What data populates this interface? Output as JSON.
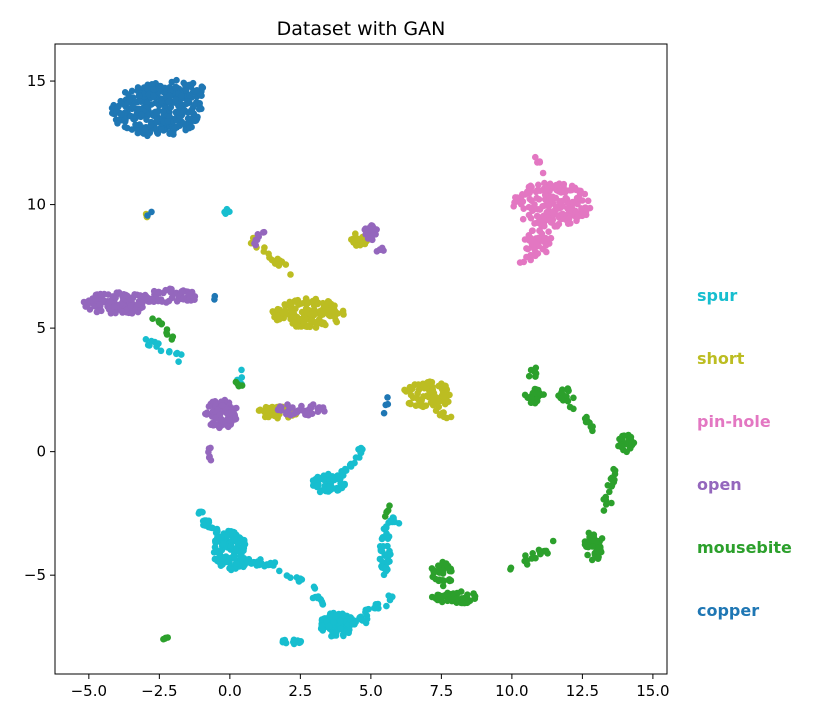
{
  "chart_data": {
    "type": "scatter",
    "title": "Dataset with GAN",
    "xlabel": "",
    "ylabel": "",
    "xlim": [
      -6.2,
      15.5
    ],
    "ylim": [
      -9.0,
      16.5
    ],
    "x_ticks": [
      -5.0,
      -2.5,
      0.0,
      2.5,
      5.0,
      7.5,
      10.0,
      12.5,
      15.0
    ],
    "x_tick_labels": [
      "−5.0",
      "−2.5",
      "0.0",
      "2.5",
      "5.0",
      "7.5",
      "10.0",
      "12.5",
      "15.0"
    ],
    "y_ticks": [
      -5,
      0,
      5,
      10,
      15
    ],
    "y_tick_labels": [
      "−5",
      "0",
      "5",
      "10",
      "15"
    ],
    "grid": false,
    "legend_position": "right",
    "series": [
      {
        "name": "spur",
        "color": "#17becf",
        "clusters": [
          {
            "cx": 0.0,
            "cy": -4.0,
            "rx": 0.6,
            "ry": 0.8,
            "n": 120
          },
          {
            "cx": 3.8,
            "cy": -7.0,
            "rx": 0.6,
            "ry": 0.5,
            "n": 100
          },
          {
            "cx": 3.5,
            "cy": -1.3,
            "rx": 0.6,
            "ry": 0.4,
            "n": 60
          },
          {
            "cx": 5.5,
            "cy": -4.0,
            "rx": 0.2,
            "ry": 1.0,
            "n": 40
          },
          {
            "cx": 2.2,
            "cy": -7.7,
            "rx": 0.4,
            "ry": 0.1,
            "n": 12
          }
        ],
        "paths": [
          {
            "points": [
              [
                -1.2,
                -1.8
              ],
              [
                -0.9,
                -2.8
              ],
              [
                -0.3,
                -3.5
              ]
            ],
            "n": 22
          },
          {
            "points": [
              [
                0.5,
                -4.5
              ],
              [
                1.5,
                -4.6
              ],
              [
                2.5,
                -5.2
              ],
              [
                3.4,
                -6.3
              ]
            ],
            "n": 45
          },
          {
            "points": [
              [
                4.3,
                -7.0
              ],
              [
                5.0,
                -6.4
              ],
              [
                5.9,
                -5.8
              ]
            ],
            "n": 28
          },
          {
            "points": [
              [
                3.9,
                -0.9
              ],
              [
                4.5,
                -0.4
              ],
              [
                4.6,
                0.2
              ]
            ],
            "n": 16
          },
          {
            "points": [
              [
                -3.0,
                4.6
              ],
              [
                -2.4,
                4.1
              ],
              [
                -1.7,
                3.8
              ]
            ],
            "n": 14
          },
          {
            "points": [
              [
                -0.2,
                9.8
              ],
              [
                0.1,
                9.6
              ]
            ],
            "n": 4
          },
          {
            "points": [
              [
                5.6,
                -2.6
              ],
              [
                5.9,
                -3.0
              ]
            ],
            "n": 8
          },
          {
            "points": [
              [
                0.2,
                3.4
              ],
              [
                0.4,
                2.6
              ]
            ],
            "n": 6
          }
        ]
      },
      {
        "name": "short",
        "color": "#bcbd22",
        "clusters": [
          {
            "cx": 2.8,
            "cy": 5.6,
            "rx": 1.3,
            "ry": 0.6,
            "n": 150
          },
          {
            "cx": 7.0,
            "cy": 2.3,
            "rx": 0.9,
            "ry": 0.55,
            "n": 90
          },
          {
            "cx": 1.7,
            "cy": 1.6,
            "rx": 0.7,
            "ry": 0.25,
            "n": 40
          },
          {
            "cx": 4.6,
            "cy": 8.6,
            "rx": 0.4,
            "ry": 0.35,
            "n": 22
          }
        ],
        "paths": [
          {
            "points": [
              [
                0.7,
                8.6
              ],
              [
                1.5,
                7.8
              ],
              [
                2.2,
                7.2
              ]
            ],
            "n": 22
          },
          {
            "points": [
              [
                7.3,
                1.8
              ],
              [
                7.8,
                1.3
              ]
            ],
            "n": 8
          },
          {
            "points": [
              [
                -3.0,
                9.6
              ],
              [
                -2.9,
                9.6
              ]
            ],
            "n": 3
          }
        ]
      },
      {
        "name": "pin-hole",
        "color": "#e377c2",
        "clusters": [
          {
            "cx": 11.4,
            "cy": 10.0,
            "rx": 1.4,
            "ry": 0.9,
            "n": 170
          },
          {
            "cx": 10.9,
            "cy": 8.6,
            "rx": 0.5,
            "ry": 0.7,
            "n": 40
          }
        ],
        "paths": [
          {
            "points": [
              [
                10.9,
                11.9
              ],
              [
                11.1,
                11.2
              ]
            ],
            "n": 6
          },
          {
            "points": [
              [
                10.4,
                7.6
              ],
              [
                10.7,
                8.0
              ]
            ],
            "n": 6
          }
        ]
      },
      {
        "name": "open",
        "color": "#9467bd",
        "clusters": [
          {
            "cx": -4.0,
            "cy": 6.0,
            "rx": 1.2,
            "ry": 0.45,
            "n": 110
          },
          {
            "cx": -2.1,
            "cy": 6.3,
            "rx": 1.0,
            "ry": 0.3,
            "n": 55
          },
          {
            "cx": -0.3,
            "cy": 1.5,
            "rx": 0.6,
            "ry": 0.6,
            "n": 100
          },
          {
            "cx": 2.5,
            "cy": 1.7,
            "rx": 0.9,
            "ry": 0.25,
            "n": 40
          },
          {
            "cx": 5.0,
            "cy": 8.9,
            "rx": 0.3,
            "ry": 0.35,
            "n": 20
          }
        ],
        "paths": [
          {
            "points": [
              [
                -0.6,
                0.2
              ],
              [
                -0.7,
                -0.4
              ]
            ],
            "n": 6
          },
          {
            "points": [
              [
                0.8,
                8.4
              ],
              [
                1.2,
                8.8
              ]
            ],
            "n": 8
          },
          {
            "points": [
              [
                5.3,
                8.3
              ],
              [
                5.6,
                7.7
              ]
            ],
            "n": 6
          }
        ]
      },
      {
        "name": "mousebite",
        "color": "#2ca02c",
        "clusters": [
          {
            "cx": 8.0,
            "cy": -5.9,
            "rx": 0.9,
            "ry": 0.25,
            "n": 50
          },
          {
            "cx": 7.5,
            "cy": -4.9,
            "rx": 0.4,
            "ry": 0.6,
            "n": 30
          },
          {
            "cx": 12.9,
            "cy": -3.8,
            "rx": 0.35,
            "ry": 0.6,
            "n": 40
          },
          {
            "cx": 14.0,
            "cy": 0.3,
            "rx": 0.4,
            "ry": 0.4,
            "n": 25
          },
          {
            "cx": 10.8,
            "cy": 2.3,
            "rx": 0.35,
            "ry": 0.35,
            "n": 20
          },
          {
            "cx": 11.9,
            "cy": 2.3,
            "rx": 0.35,
            "ry": 0.3,
            "n": 15
          }
        ],
        "paths": [
          {
            "points": [
              [
                13.7,
                -0.5
              ],
              [
                13.5,
                -1.5
              ],
              [
                13.3,
                -2.4
              ]
            ],
            "n": 18
          },
          {
            "points": [
              [
                10.0,
                -4.7
              ],
              [
                10.8,
                -4.2
              ],
              [
                11.5,
                -3.8
              ]
            ],
            "n": 18
          },
          {
            "points": [
              [
                12.1,
                1.9
              ],
              [
                12.6,
                1.3
              ],
              [
                12.9,
                0.9
              ]
            ],
            "n": 10
          },
          {
            "points": [
              [
                -2.8,
                5.5
              ],
              [
                -2.4,
                5.1
              ],
              [
                -2.1,
                4.6
              ]
            ],
            "n": 10
          },
          {
            "points": [
              [
                10.9,
                3.6
              ],
              [
                10.8,
                2.8
              ]
            ],
            "n": 6
          },
          {
            "points": [
              [
                0.1,
                2.8
              ],
              [
                0.4,
                2.7
              ]
            ],
            "n": 4
          },
          {
            "points": [
              [
                -2.4,
                -7.6
              ],
              [
                -2.2,
                -7.5
              ]
            ],
            "n": 4
          },
          {
            "points": [
              [
                5.4,
                -2.8
              ],
              [
                5.6,
                -2.3
              ]
            ],
            "n": 5
          }
        ]
      },
      {
        "name": "copper",
        "color": "#1f77b4",
        "clusters": [
          {
            "cx": -2.6,
            "cy": 13.8,
            "rx": 1.6,
            "ry": 1.05,
            "n": 260
          },
          {
            "cx": -2.0,
            "cy": 14.6,
            "rx": 1.1,
            "ry": 0.45,
            "n": 70
          }
        ],
        "paths": [
          {
            "points": [
              [
                5.3,
                1.6
              ],
              [
                5.6,
                2.0
              ]
            ],
            "n": 4
          },
          {
            "points": [
              [
                -0.6,
                6.3
              ],
              [
                -0.5,
                6.2
              ]
            ],
            "n": 2
          },
          {
            "points": [
              [
                -2.9,
                9.7
              ],
              [
                -2.8,
                9.7
              ]
            ],
            "n": 2
          }
        ]
      }
    ]
  }
}
